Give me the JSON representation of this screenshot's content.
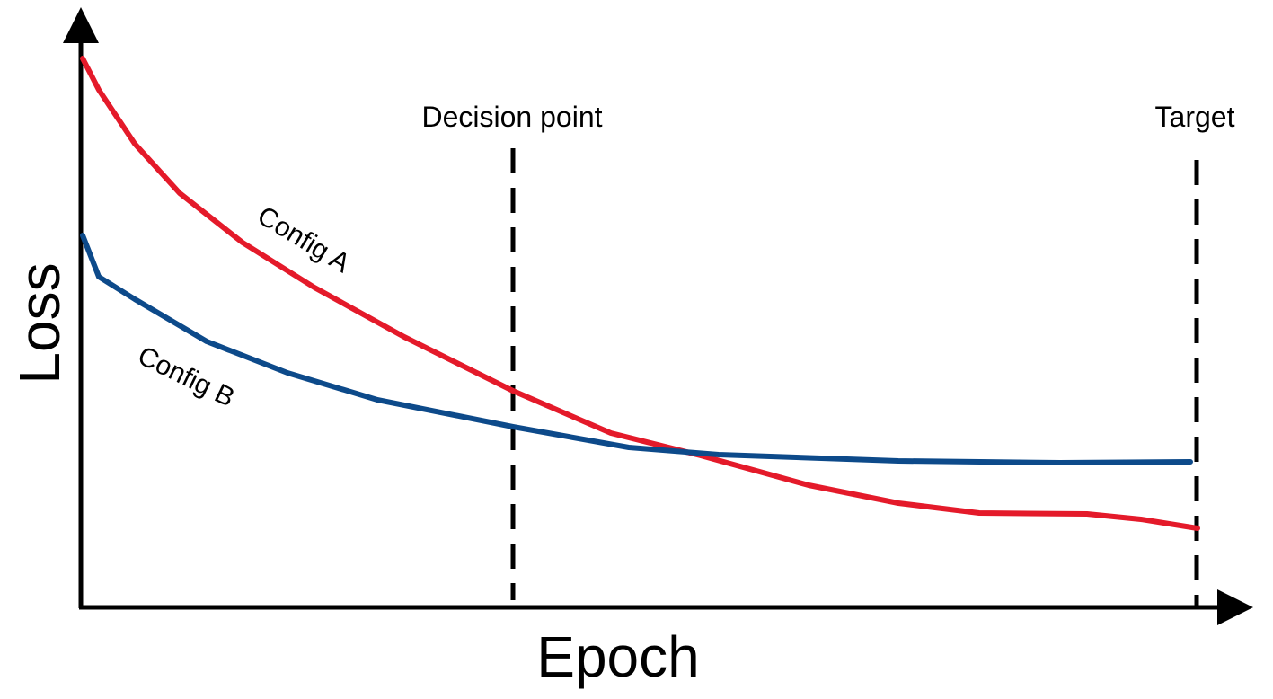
{
  "axes": {
    "y_label": "Loss",
    "x_label": "Epoch"
  },
  "markers": [
    {
      "label": "Decision point"
    },
    {
      "label": "Target"
    }
  ],
  "curves": [
    {
      "label": "Config A"
    },
    {
      "label": "Config B"
    }
  ]
}
